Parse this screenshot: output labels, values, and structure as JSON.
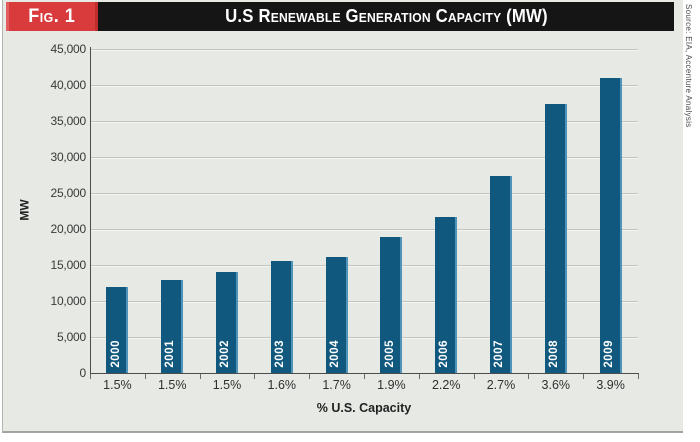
{
  "figure": {
    "label": "Fig. 1",
    "title": "U.S Renewable Generation Capacity (MW)",
    "source": "Source: EIA, Accenture Analysis"
  },
  "colors": {
    "bar": "#11587e",
    "bar_highlight": "#4f93b8",
    "fig_label_red": "#d93b3d",
    "header_black": "#151515",
    "panel_background": "#e7e9e5"
  },
  "chart_data": {
    "type": "bar",
    "title": "U.S Renewable Generation Capacity (MW)",
    "categories": [
      "1.5%",
      "1.5%",
      "1.5%",
      "1.6%",
      "1.7%",
      "1.9%",
      "2.2%",
      "2.7%",
      "3.6%",
      "3.9%"
    ],
    "bar_labels": [
      "2000",
      "2001",
      "2002",
      "2003",
      "2004",
      "2005",
      "2006",
      "2007",
      "2008",
      "2009"
    ],
    "values": [
      12000,
      12900,
      14000,
      15500,
      16100,
      18900,
      21700,
      27400,
      37300,
      41000
    ],
    "xlabel": "% U.S. Capacity",
    "ylabel": "MW",
    "ylim": [
      0,
      45000
    ],
    "ytick_step": 5000,
    "ytick_labels": [
      "0",
      "5,000",
      "10,000",
      "15,000",
      "20,000",
      "25,000",
      "30,000",
      "35,000",
      "40,000",
      "45,000"
    ],
    "grid": true,
    "legend": "none",
    "bar_label_position": "inside-bottom-rotated"
  }
}
